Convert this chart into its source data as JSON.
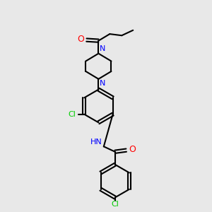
{
  "bg_color": "#e8e8e8",
  "bond_color": "#000000",
  "N_color": "#0000ff",
  "O_color": "#ff0000",
  "Cl_color": "#00cc00",
  "line_width": 1.5,
  "fig_size": [
    3.0,
    3.0
  ],
  "dpi": 100,
  "xlim": [
    -4.5,
    4.5
  ],
  "ylim": [
    -5.5,
    8.5
  ]
}
